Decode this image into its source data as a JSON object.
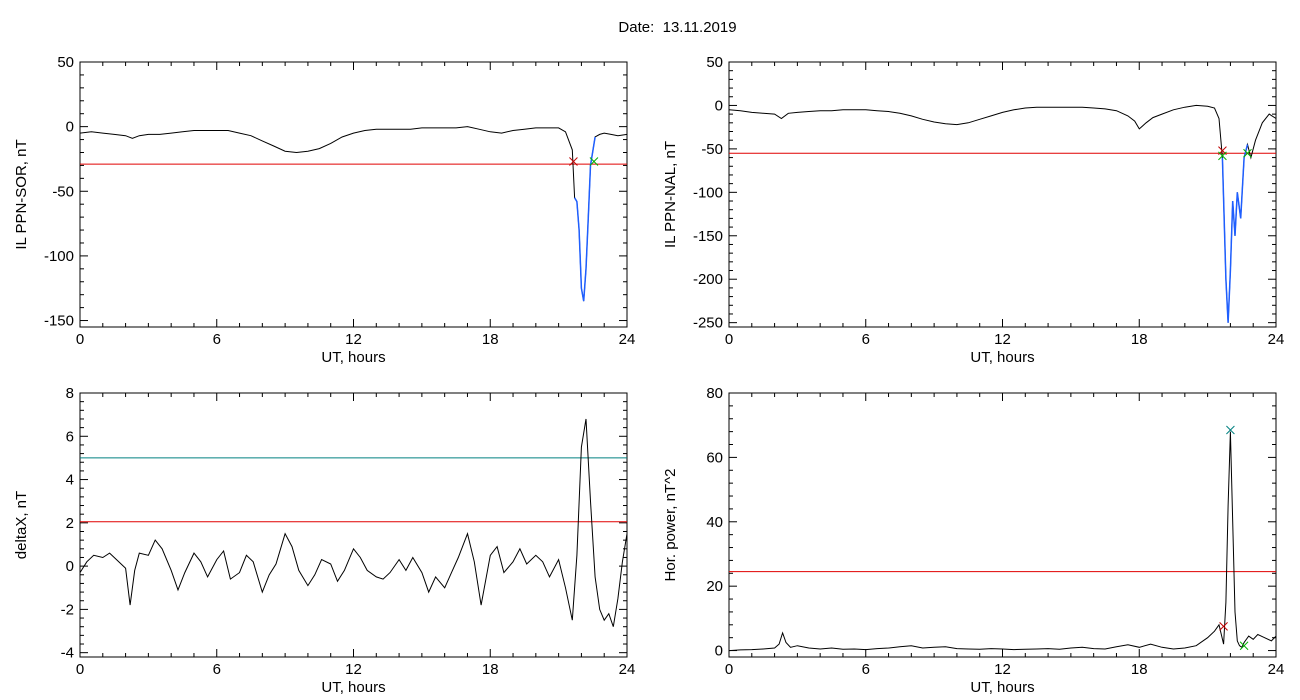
{
  "title": "Date:  13.11.2019",
  "colors": {
    "trace": "#000000",
    "threshold_red": "#e00000",
    "threshold_teal": "#008080",
    "event_blue": "#1f5fff",
    "marker_red": "#c00000",
    "marker_green": "#00b000",
    "marker_teal": "#008080"
  },
  "chart_data": [
    {
      "type": "line",
      "ylabel": "IL PPN-SOR, nT",
      "xlabel": "UT, hours",
      "xlim": [
        0,
        24
      ],
      "ylim": [
        -155,
        50
      ],
      "xticks": [
        0,
        6,
        12,
        18,
        24
      ],
      "yticks": [
        -150,
        -100,
        -50,
        0,
        50
      ],
      "series": [
        {
          "values_x": [
            0,
            0.5,
            1,
            1.5,
            2,
            2.3,
            2.6,
            3,
            3.5,
            4,
            4.5,
            5,
            5.5,
            6,
            6.5,
            7,
            7.5,
            8,
            8.5,
            9,
            9.5,
            10,
            10.5,
            11,
            11.5,
            12,
            12.5,
            13,
            13.5,
            14,
            14.5,
            15,
            15.5,
            16,
            16.5,
            17,
            17.5,
            18,
            18.5,
            19,
            19.5,
            20,
            20.5,
            21,
            21.3,
            21.6,
            21.7,
            21.8,
            21.9,
            22.0,
            22.1,
            22.2,
            22.3,
            22.4,
            22.6,
            22.8,
            23.0,
            23.3,
            23.6,
            24
          ],
          "values_y": [
            -5,
            -4,
            -5,
            -6,
            -7,
            -9,
            -7,
            -6,
            -6,
            -5,
            -4,
            -3,
            -3,
            -3,
            -3,
            -5,
            -7,
            -11,
            -15,
            -19,
            -20,
            -19,
            -17,
            -13,
            -8,
            -5,
            -3,
            -2,
            -2,
            -2,
            -2,
            -1,
            -1,
            -1,
            -1,
            0,
            -2,
            -4,
            -5,
            -3,
            -2,
            -1,
            -1,
            -1,
            -4,
            -18,
            -55,
            -58,
            -80,
            -125,
            -135,
            -110,
            -70,
            -30,
            -8,
            -6,
            -5,
            -6,
            -7,
            -6
          ]
        }
      ],
      "thresholds": [
        {
          "y": -29,
          "color": "#e00000"
        }
      ],
      "event_segment": {
        "x_start": 21.65,
        "x_end": 22.6,
        "color": "#1f5fff"
      },
      "markers": [
        {
          "x": 21.65,
          "y": -27,
          "color": "#c00000"
        },
        {
          "x": 22.55,
          "y": -27,
          "color": "#00b000"
        }
      ]
    },
    {
      "type": "line",
      "ylabel": "IL PPN-NAL, nT",
      "xlabel": "UT, hours",
      "xlim": [
        0,
        24
      ],
      "ylim": [
        -255,
        50
      ],
      "xticks": [
        0,
        6,
        12,
        18,
        24
      ],
      "yticks": [
        -250,
        -200,
        -150,
        -100,
        -50,
        0,
        50
      ],
      "series": [
        {
          "values_x": [
            0,
            0.5,
            1,
            1.5,
            2,
            2.3,
            2.6,
            3,
            3.5,
            4,
            4.5,
            5,
            5.5,
            6,
            6.5,
            7,
            7.5,
            8,
            8.5,
            9,
            9.5,
            10,
            10.5,
            11,
            11.5,
            12,
            12.5,
            13,
            13.5,
            14,
            14.5,
            15,
            15.5,
            16,
            16.5,
            17,
            17.5,
            17.8,
            18,
            18.3,
            18.6,
            19,
            19.5,
            20,
            20.5,
            21,
            21.3,
            21.5,
            21.65,
            21.8,
            21.9,
            22.0,
            22.1,
            22.2,
            22.3,
            22.45,
            22.6,
            22.75,
            22.9,
            23.1,
            23.4,
            23.7,
            24
          ],
          "values_y": [
            -5,
            -6,
            -8,
            -9,
            -10,
            -15,
            -9,
            -8,
            -7,
            -6,
            -6,
            -5,
            -5,
            -5,
            -6,
            -7,
            -9,
            -12,
            -16,
            -19,
            -21,
            -22,
            -20,
            -16,
            -12,
            -8,
            -5,
            -3,
            -2,
            -2,
            -2,
            -2,
            -2,
            -3,
            -4,
            -6,
            -12,
            -18,
            -27,
            -20,
            -14,
            -10,
            -5,
            -2,
            0,
            -1,
            -3,
            -15,
            -60,
            -200,
            -250,
            -190,
            -110,
            -150,
            -100,
            -130,
            -60,
            -45,
            -60,
            -40,
            -20,
            -10,
            -15
          ]
        }
      ],
      "thresholds": [
        {
          "y": -55,
          "color": "#e00000"
        }
      ],
      "event_segment": {
        "x_start": 21.65,
        "x_end": 22.8,
        "color": "#1f5fff"
      },
      "markers": [
        {
          "x": 21.65,
          "y": -52,
          "color": "#c00000"
        },
        {
          "x": 21.65,
          "y": -58,
          "color": "#00b000"
        },
        {
          "x": 22.75,
          "y": -55,
          "color": "#00b000"
        }
      ]
    },
    {
      "type": "line",
      "ylabel": "deltaX, nT",
      "xlabel": "UT, hours",
      "xlim": [
        0,
        24
      ],
      "ylim": [
        -4.2,
        8
      ],
      "xticks": [
        0,
        6,
        12,
        18,
        24
      ],
      "yticks": [
        -4,
        -2,
        0,
        2,
        4,
        6,
        8
      ],
      "series": [
        {
          "values_x": [
            0,
            0.3,
            0.6,
            1,
            1.3,
            1.6,
            2,
            2.2,
            2.4,
            2.6,
            3,
            3.3,
            3.6,
            4,
            4.3,
            4.6,
            5,
            5.3,
            5.6,
            6,
            6.3,
            6.6,
            7,
            7.3,
            7.6,
            8,
            8.3,
            8.6,
            9,
            9.3,
            9.6,
            10,
            10.3,
            10.6,
            11,
            11.3,
            11.6,
            12,
            12.3,
            12.6,
            13,
            13.3,
            13.6,
            14,
            14.3,
            14.6,
            15,
            15.3,
            15.6,
            16,
            16.3,
            16.6,
            17,
            17.3,
            17.6,
            18,
            18.3,
            18.6,
            19,
            19.3,
            19.6,
            20,
            20.3,
            20.6,
            21,
            21.3,
            21.6,
            21.8,
            22.0,
            22.2,
            22.4,
            22.6,
            22.8,
            23,
            23.2,
            23.4,
            23.6,
            23.8,
            24
          ],
          "values_y": [
            -0.3,
            0.2,
            0.5,
            0.4,
            0.6,
            0.3,
            -0.1,
            -1.8,
            -0.2,
            0.6,
            0.5,
            1.2,
            0.8,
            -0.2,
            -1.1,
            -0.3,
            0.6,
            0.2,
            -0.5,
            0.3,
            0.7,
            -0.6,
            -0.3,
            0.5,
            0.2,
            -1.2,
            -0.4,
            0.1,
            1.5,
            0.9,
            -0.2,
            -0.9,
            -0.4,
            0.3,
            0.1,
            -0.7,
            -0.2,
            0.8,
            0.4,
            -0.2,
            -0.5,
            -0.6,
            -0.3,
            0.3,
            -0.2,
            0.4,
            -0.3,
            -1.2,
            -0.5,
            -1.0,
            -0.3,
            0.4,
            1.5,
            0.2,
            -1.8,
            0.5,
            0.9,
            -0.3,
            0.2,
            0.8,
            0.1,
            0.5,
            0.2,
            -0.5,
            0.3,
            -1.0,
            -2.5,
            0.5,
            5.5,
            6.8,
            3.0,
            -0.5,
            -2.0,
            -2.5,
            -2.2,
            -2.8,
            -1.5,
            0.2,
            1.5
          ]
        }
      ],
      "thresholds": [
        {
          "y": 5.0,
          "color": "#008080"
        },
        {
          "y": 2.05,
          "color": "#e00000"
        }
      ],
      "markers": []
    },
    {
      "type": "line",
      "ylabel": "Hor. power, nT^2",
      "xlabel": "UT, hours",
      "xlim": [
        0,
        24
      ],
      "ylim": [
        -2,
        80
      ],
      "xticks": [
        0,
        6,
        12,
        18,
        24
      ],
      "yticks": [
        0,
        20,
        40,
        60,
        80
      ],
      "series": [
        {
          "values_x": [
            0,
            0.5,
            1,
            1.5,
            2,
            2.2,
            2.35,
            2.5,
            2.7,
            3,
            3.5,
            4,
            4.5,
            5,
            5.5,
            6,
            6.5,
            7,
            7.5,
            8,
            8.5,
            9,
            9.5,
            10,
            10.5,
            11,
            11.5,
            12,
            12.5,
            13,
            13.5,
            14,
            14.5,
            15,
            15.5,
            16,
            16.5,
            17,
            17.5,
            18,
            18.5,
            19,
            19.5,
            20,
            20.5,
            21,
            21.3,
            21.5,
            21.7,
            21.8,
            21.9,
            22.0,
            22.1,
            22.2,
            22.3,
            22.4,
            22.5,
            22.6,
            22.8,
            23.0,
            23.2,
            23.5,
            23.8,
            24
          ],
          "values_y": [
            0,
            0.2,
            0.3,
            0.5,
            0.8,
            2.0,
            5.5,
            2.5,
            1.0,
            1.5,
            0.8,
            0.5,
            0.8,
            0.4,
            0.5,
            0.3,
            0.6,
            0.8,
            1.2,
            1.5,
            0.8,
            1.0,
            1.2,
            0.6,
            0.5,
            0.4,
            0.6,
            0.5,
            0.3,
            0.4,
            0.5,
            0.6,
            0.4,
            0.8,
            1.0,
            0.6,
            0.5,
            1.2,
            1.8,
            1.0,
            2.0,
            1.0,
            0.5,
            0.8,
            1.5,
            4.0,
            6.0,
            8.0,
            2.0,
            15,
            45,
            68,
            40,
            12,
            3,
            1.5,
            1.0,
            2.5,
            4.5,
            3.5,
            5.0,
            4.0,
            3.0,
            4.5
          ]
        }
      ],
      "thresholds": [
        {
          "y": 24.5,
          "color": "#e00000"
        }
      ],
      "markers": [
        {
          "x": 21.7,
          "y": 7.5,
          "color": "#c00000"
        },
        {
          "x": 22.0,
          "y": 68.5,
          "color": "#008080"
        },
        {
          "x": 22.6,
          "y": 1.5,
          "color": "#00b000"
        }
      ]
    }
  ]
}
